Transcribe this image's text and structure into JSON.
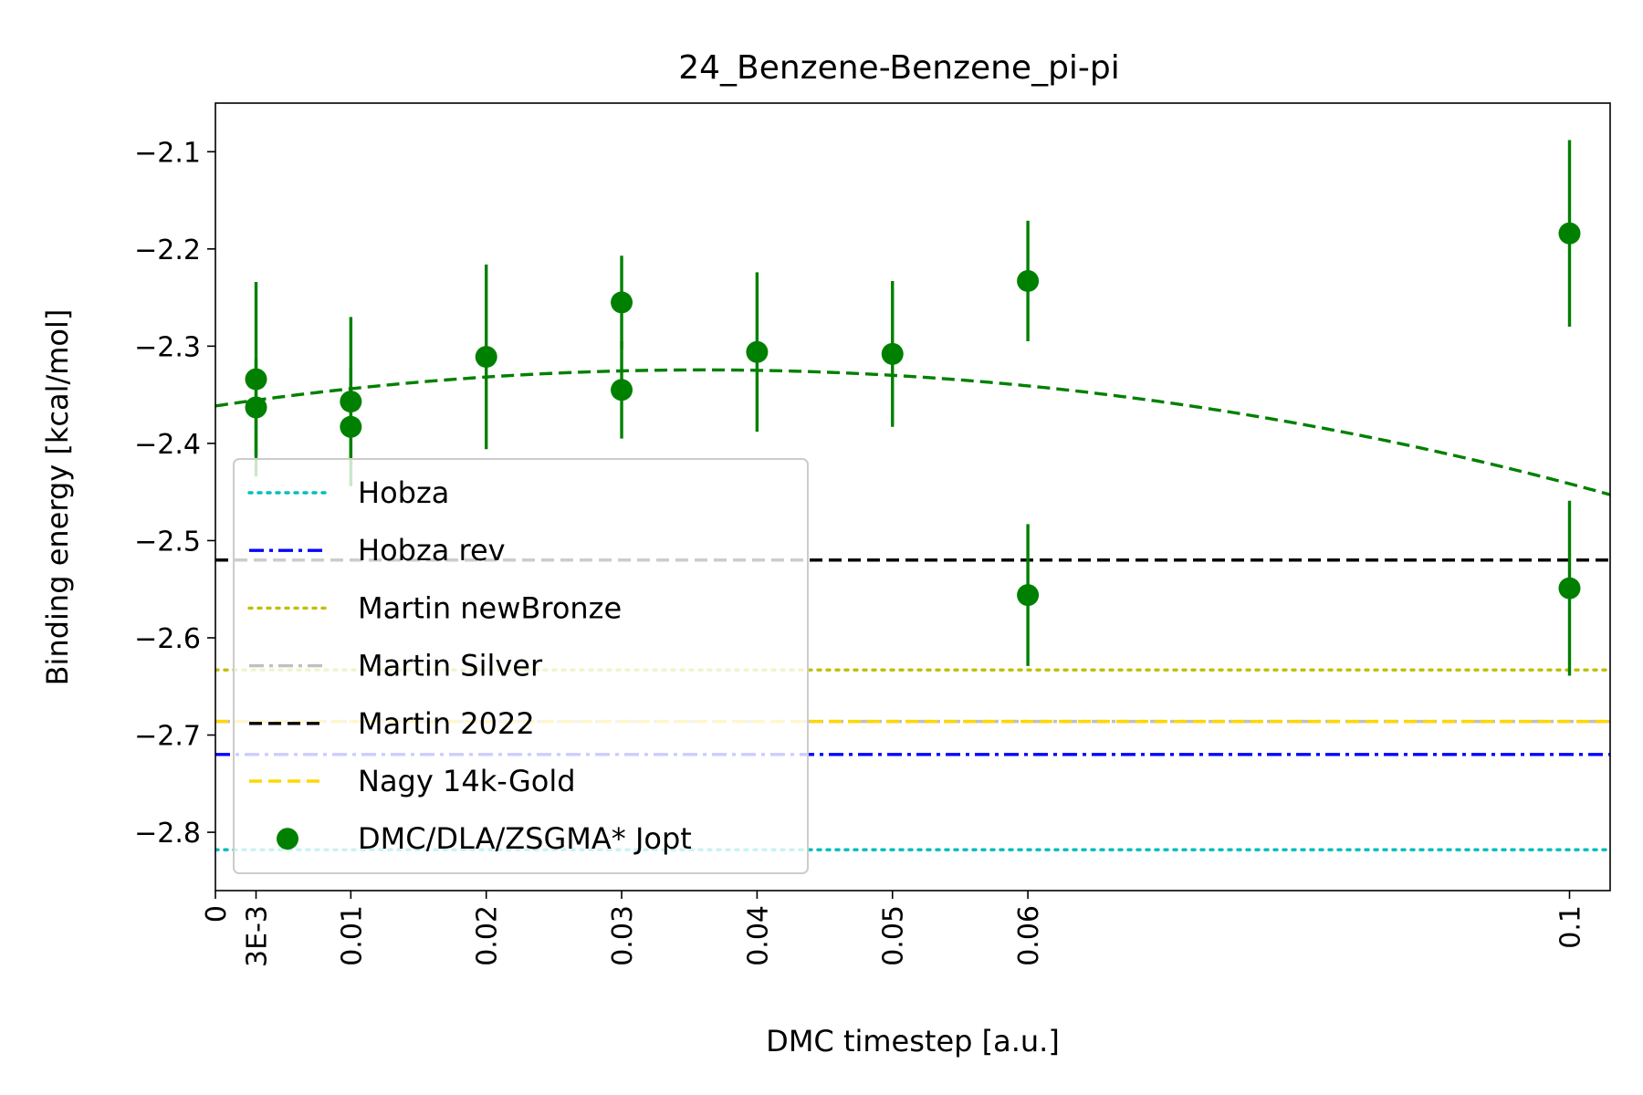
{
  "chart_data": {
    "type": "scatter",
    "title": "24_Benzene-Benzene_pi-pi",
    "xlabel": "DMC timestep [a.u.]",
    "ylabel": "Binding energy [kcal/mol]",
    "xlim": [
      0,
      0.103
    ],
    "ylim": [
      -2.86,
      -2.05
    ],
    "grid": false,
    "legend_position": "lower-left",
    "x_ticks": [
      {
        "value": 0,
        "label": "0"
      },
      {
        "value": 0.003,
        "label": "3E-3"
      },
      {
        "value": 0.01,
        "label": "0.01"
      },
      {
        "value": 0.02,
        "label": "0.02"
      },
      {
        "value": 0.03,
        "label": "0.03"
      },
      {
        "value": 0.04,
        "label": "0.04"
      },
      {
        "value": 0.05,
        "label": "0.05"
      },
      {
        "value": 0.06,
        "label": "0.06"
      },
      {
        "value": 0.1,
        "label": "0.1"
      }
    ],
    "y_ticks": [
      {
        "value": -2.1,
        "label": "−2.1"
      },
      {
        "value": -2.2,
        "label": "−2.2"
      },
      {
        "value": -2.3,
        "label": "−2.3"
      },
      {
        "value": -2.4,
        "label": "−2.4"
      },
      {
        "value": -2.5,
        "label": "−2.5"
      },
      {
        "value": -2.6,
        "label": "−2.6"
      },
      {
        "value": -2.7,
        "label": "−2.7"
      },
      {
        "value": -2.8,
        "label": "−2.8"
      }
    ],
    "reference_lines": [
      {
        "name": "Hobza",
        "y": -2.818,
        "color": "#00bfbf",
        "style": "dotted"
      },
      {
        "name": "Hobza rev",
        "y": -2.72,
        "color": "#0000ff",
        "style": "dashdot"
      },
      {
        "name": "Martin newBronze",
        "y": -2.633,
        "color": "#bfbf00",
        "style": "dotted"
      },
      {
        "name": "Martin Silver",
        "y": -2.686,
        "color": "#c0c0c0",
        "style": "dashdot"
      },
      {
        "name": "Martin 2022",
        "y": -2.52,
        "color": "#000000",
        "style": "dashed"
      },
      {
        "name": "Nagy 14k-Gold",
        "y": -2.686,
        "color": "#ffd700",
        "style": "dashed"
      }
    ],
    "series": [
      {
        "name": "DMC/DLA/ZSGMA* Jopt",
        "color": "#008000",
        "marker": "circle",
        "points": [
          {
            "x": 0.003,
            "y": -2.334,
            "err": 0.1
          },
          {
            "x": 0.003,
            "y": -2.363,
            "err": 0.05
          },
          {
            "x": 0.01,
            "y": -2.357,
            "err": 0.087
          },
          {
            "x": 0.01,
            "y": -2.383,
            "err": 0.06
          },
          {
            "x": 0.02,
            "y": -2.311,
            "err": 0.095
          },
          {
            "x": 0.03,
            "y": -2.255,
            "err": 0.048
          },
          {
            "x": 0.03,
            "y": -2.345,
            "err": 0.05
          },
          {
            "x": 0.04,
            "y": -2.306,
            "err": 0.082
          },
          {
            "x": 0.05,
            "y": -2.308,
            "err": 0.075
          },
          {
            "x": 0.06,
            "y": -2.233,
            "err": 0.062
          },
          {
            "x": 0.06,
            "y": -2.556,
            "err": 0.073
          },
          {
            "x": 0.1,
            "y": -2.184,
            "err": 0.096
          },
          {
            "x": 0.1,
            "y": -2.549,
            "err": 0.09
          }
        ]
      }
    ],
    "fit_curve": {
      "color": "#008000",
      "style": "dashed",
      "coefficients": [
        -2.3615,
        2.06,
        -28.6
      ]
    }
  }
}
